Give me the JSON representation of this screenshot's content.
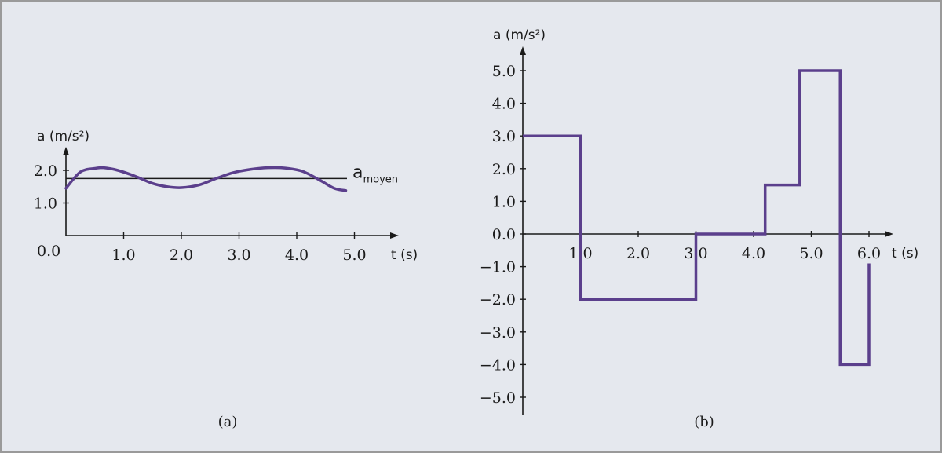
{
  "colors": {
    "curve": "#5b3f8c",
    "axis": "#1a1a1a",
    "background": "#e5e8ee"
  },
  "chart_data": [
    {
      "type": "line",
      "panel_label": "(a)",
      "xlabel": "t (s)",
      "ylabel": "a (m/s²)",
      "origin_label": "0.0",
      "xlim": [
        0,
        5.6
      ],
      "ylim": [
        0,
        2.6
      ],
      "x_ticks": [
        1.0,
        2.0,
        3.0,
        4.0,
        5.0
      ],
      "x_tick_labels": [
        "1.0",
        "2.0",
        "3.0",
        "4.0",
        "5.0"
      ],
      "y_ticks": [
        1.0,
        2.0
      ],
      "y_tick_labels": [
        "1.0",
        "2.0"
      ],
      "reference_line": {
        "value": 1.75,
        "label_main": "a",
        "label_sub": "moyen"
      },
      "series": [
        {
          "x": [
            0,
            0.25,
            0.5,
            0.65,
            0.9,
            1.2,
            1.5,
            1.75,
            2.0,
            2.3,
            2.6,
            2.9,
            3.2,
            3.5,
            3.8,
            4.1,
            4.4,
            4.65,
            4.85
          ],
          "y": [
            1.45,
            1.95,
            2.06,
            2.08,
            2.0,
            1.82,
            1.6,
            1.5,
            1.47,
            1.55,
            1.75,
            1.93,
            2.03,
            2.08,
            2.07,
            1.97,
            1.7,
            1.45,
            1.38
          ]
        }
      ]
    },
    {
      "type": "line",
      "panel_label": "(b)",
      "xlabel": "t (s)",
      "ylabel": "a (m/s²)",
      "xlim": [
        0,
        6.4
      ],
      "ylim": [
        -5.5,
        5.9
      ],
      "x_ticks": [
        1.0,
        2.0,
        3.0,
        4.0,
        5.0,
        6.0
      ],
      "x_tick_labels": [
        "1.0",
        "2.0",
        "3.0",
        "4.0",
        "5.0",
        "6.0"
      ],
      "y_ticks": [
        5.0,
        4.0,
        3.0,
        2.0,
        1.0,
        0.0,
        -1.0,
        -2.0,
        -3.0,
        -4.0,
        -5.0
      ],
      "y_tick_labels": [
        "5.0",
        "4.0",
        "3.0",
        "2.0",
        "1.0",
        "0.0",
        "−1.0",
        "−2.0",
        "−3.0",
        "−4.0",
        "−5.0"
      ],
      "series": [
        {
          "x": [
            0,
            1.0,
            1.0,
            3.0,
            3.0,
            4.2,
            4.2,
            4.8,
            4.8,
            5.5,
            5.5,
            6.0,
            6.0
          ],
          "y": [
            3.0,
            3.0,
            -2.0,
            -2.0,
            0.0,
            0.0,
            1.5,
            1.5,
            5.0,
            5.0,
            -4.0,
            -4.0,
            -0.9
          ]
        }
      ]
    }
  ]
}
